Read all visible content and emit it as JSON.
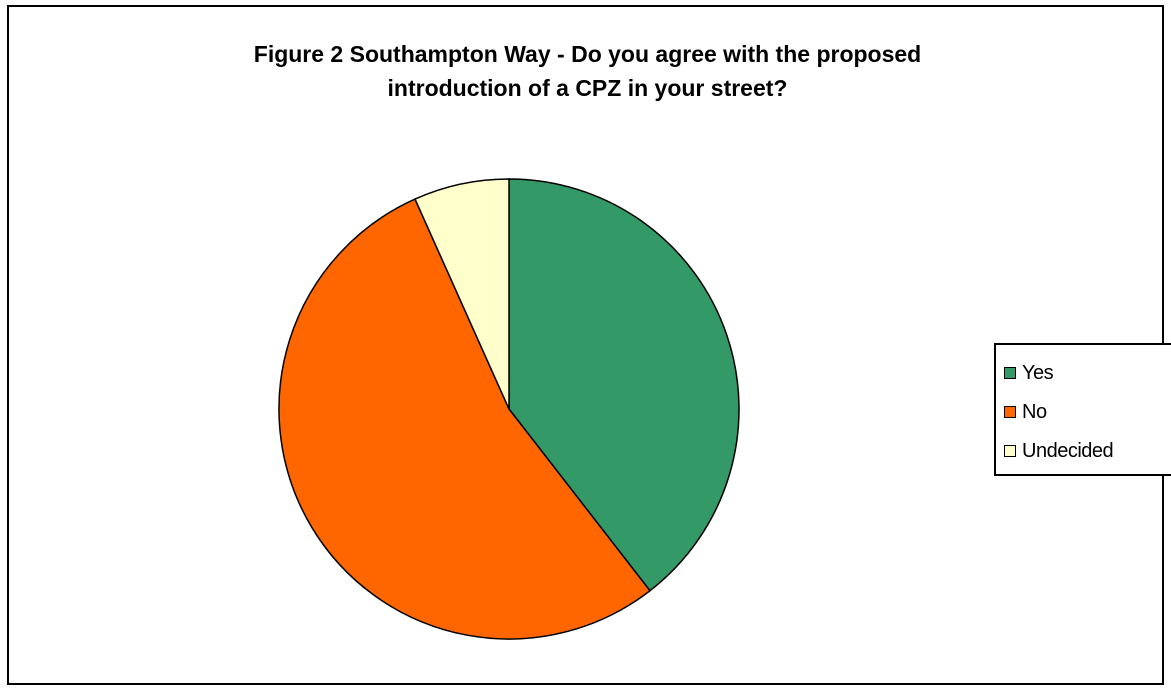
{
  "chart_data": {
    "type": "pie",
    "title_lines": [
      "Figure 2 Southampton Way - Do you agree with the proposed",
      "introduction of a CPZ in your street?"
    ],
    "categories": [
      "Yes",
      "No",
      "Undecided"
    ],
    "values": [
      39.5,
      53.8,
      6.7
    ],
    "colors": [
      "#339966",
      "#FF6600",
      "#FFFFCC"
    ],
    "start_angle": "12 o'clock",
    "direction": "clockwise",
    "legend_position": "right"
  }
}
